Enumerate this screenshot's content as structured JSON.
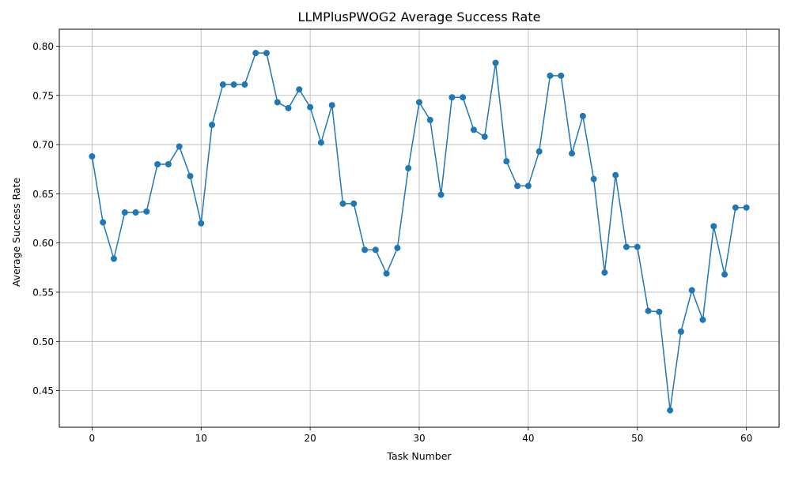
{
  "chart_data": {
    "type": "line",
    "title": "LLMPlusPWOG2 Average Success Rate",
    "xlabel": "Task Number",
    "ylabel": "Average Success Rate",
    "xlim": [
      -3,
      63
    ],
    "ylim": [
      0.4128,
      0.8172
    ],
    "x_ticks": [
      0,
      10,
      20,
      30,
      40,
      50,
      60
    ],
    "x_tick_labels": [
      "0",
      "10",
      "20",
      "30",
      "40",
      "50",
      "60"
    ],
    "y_ticks": [
      0.45,
      0.5,
      0.55,
      0.6,
      0.65,
      0.7,
      0.75,
      0.8
    ],
    "y_tick_labels": [
      "0.45",
      "0.50",
      "0.55",
      "0.60",
      "0.65",
      "0.70",
      "0.75",
      "0.80"
    ],
    "grid": true,
    "marker": "circle",
    "series": [
      {
        "color": "#1f77b4",
        "x": [
          0,
          1,
          2,
          3,
          4,
          5,
          6,
          7,
          8,
          9,
          10,
          11,
          12,
          13,
          14,
          15,
          16,
          17,
          18,
          19,
          20,
          21,
          22,
          23,
          24,
          25,
          26,
          27,
          28,
          29,
          30,
          31,
          32,
          33,
          34,
          35,
          36,
          37,
          38,
          39,
          40,
          41,
          42,
          43,
          44,
          45,
          46,
          47,
          48,
          49,
          50,
          51,
          52,
          53,
          54,
          55,
          56,
          57,
          58,
          59,
          60
        ],
        "y": [
          0.688,
          0.621,
          0.584,
          0.631,
          0.631,
          0.632,
          0.68,
          0.68,
          0.698,
          0.668,
          0.62,
          0.72,
          0.761,
          0.761,
          0.761,
          0.793,
          0.793,
          0.743,
          0.737,
          0.756,
          0.738,
          0.702,
          0.74,
          0.64,
          0.64,
          0.593,
          0.593,
          0.569,
          0.595,
          0.676,
          0.743,
          0.725,
          0.649,
          0.748,
          0.748,
          0.715,
          0.708,
          0.783,
          0.683,
          0.658,
          0.658,
          0.693,
          0.77,
          0.77,
          0.691,
          0.729,
          0.665,
          0.57,
          0.669,
          0.596,
          0.596,
          0.531,
          0.53,
          0.43,
          0.51,
          0.552,
          0.522,
          0.617,
          0.568,
          0.636,
          0.636
        ]
      }
    ]
  }
}
